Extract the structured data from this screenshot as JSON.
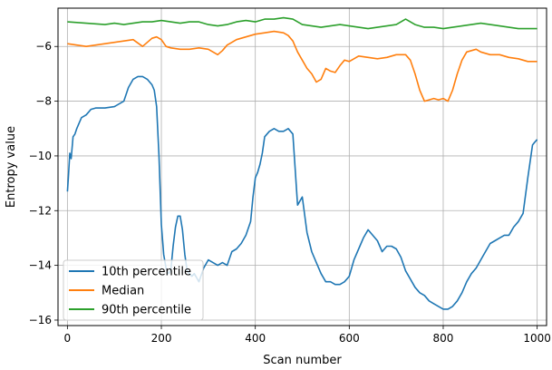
{
  "chart_data": {
    "type": "line",
    "title": "",
    "xlabel": "Scan number",
    "ylabel": "Entropy value",
    "xlim": [
      -20,
      1020
    ],
    "ylim": [
      -16.2,
      -4.6
    ],
    "xticks": [
      0,
      200,
      400,
      600,
      800,
      1000
    ],
    "yticks": [
      -16,
      -14,
      -12,
      -10,
      -8,
      -6
    ],
    "xtick_labels": [
      "0",
      "200",
      "400",
      "600",
      "800",
      "1000"
    ],
    "ytick_labels": [
      "−16",
      "−14",
      "−12",
      "−10",
      "−8",
      "−6"
    ],
    "grid": true,
    "legend_position": "lower-left",
    "series": [
      {
        "name": "10th percentile",
        "color": "#1f77b4",
        "x": [
          0,
          2,
          5,
          8,
          12,
          16,
          20,
          25,
          30,
          40,
          50,
          60,
          70,
          80,
          100,
          120,
          130,
          140,
          150,
          160,
          170,
          180,
          185,
          190,
          195,
          200,
          205,
          210,
          215,
          220,
          225,
          230,
          235,
          240,
          245,
          250,
          255,
          260,
          265,
          270,
          280,
          290,
          300,
          310,
          320,
          330,
          340,
          350,
          360,
          370,
          380,
          390,
          395,
          400,
          405,
          410,
          415,
          420,
          430,
          440,
          450,
          460,
          470,
          480,
          490,
          500,
          510,
          520,
          530,
          540,
          550,
          560,
          570,
          580,
          590,
          600,
          610,
          620,
          630,
          640,
          650,
          660,
          670,
          680,
          690,
          700,
          710,
          720,
          730,
          740,
          750,
          760,
          770,
          780,
          790,
          800,
          810,
          820,
          830,
          840,
          850,
          860,
          870,
          880,
          890,
          900,
          910,
          920,
          930,
          940,
          950,
          960,
          970,
          980,
          985,
          990,
          995,
          1000
        ],
        "y": [
          -11.3,
          -10.8,
          -9.9,
          -10.1,
          -9.3,
          -9.2,
          -9.0,
          -8.8,
          -8.6,
          -8.5,
          -8.3,
          -8.25,
          -8.25,
          -8.25,
          -8.2,
          -8.0,
          -7.5,
          -7.2,
          -7.1,
          -7.1,
          -7.2,
          -7.4,
          -7.6,
          -8.2,
          -10.0,
          -12.5,
          -13.6,
          -14.1,
          -14.3,
          -14.2,
          -13.3,
          -12.6,
          -12.2,
          -12.2,
          -12.7,
          -13.6,
          -14.2,
          -14.3,
          -14.4,
          -14.3,
          -14.6,
          -14.1,
          -13.8,
          -13.9,
          -14.0,
          -13.9,
          -14.0,
          -13.5,
          -13.4,
          -13.2,
          -12.9,
          -12.4,
          -11.5,
          -10.8,
          -10.6,
          -10.3,
          -9.9,
          -9.3,
          -9.1,
          -9.0,
          -9.1,
          -9.1,
          -9.0,
          -9.2,
          -11.8,
          -11.5,
          -12.8,
          -13.5,
          -13.9,
          -14.3,
          -14.6,
          -14.6,
          -14.7,
          -14.7,
          -14.6,
          -14.4,
          -13.8,
          -13.4,
          -13.0,
          -12.7,
          -12.9,
          -13.1,
          -13.5,
          -13.3,
          -13.3,
          -13.4,
          -13.7,
          -14.2,
          -14.5,
          -14.8,
          -15.0,
          -15.1,
          -15.3,
          -15.4,
          -15.5,
          -15.6,
          -15.6,
          -15.5,
          -15.3,
          -15.0,
          -14.6,
          -14.3,
          -14.1,
          -13.8,
          -13.5,
          -13.2,
          -13.1,
          -13.0,
          -12.9,
          -12.9,
          -12.6,
          -12.4,
          -12.1,
          -10.8,
          -10.2,
          -9.6,
          -9.5,
          -9.4
        ]
      },
      {
        "name": "Median",
        "color": "#ff7f0e",
        "x": [
          0,
          20,
          40,
          60,
          80,
          100,
          120,
          140,
          160,
          170,
          180,
          190,
          200,
          210,
          220,
          240,
          260,
          280,
          300,
          310,
          320,
          330,
          340,
          350,
          360,
          370,
          380,
          390,
          400,
          420,
          440,
          460,
          470,
          480,
          490,
          500,
          510,
          520,
          530,
          540,
          550,
          560,
          570,
          580,
          590,
          600,
          620,
          640,
          660,
          680,
          700,
          720,
          730,
          740,
          750,
          760,
          770,
          780,
          790,
          800,
          810,
          820,
          830,
          840,
          850,
          860,
          870,
          880,
          900,
          920,
          940,
          960,
          980,
          1000
        ],
        "y": [
          -5.9,
          -5.95,
          -6.0,
          -5.95,
          -5.9,
          -5.85,
          -5.8,
          -5.75,
          -6.0,
          -5.85,
          -5.7,
          -5.65,
          -5.75,
          -6.0,
          -6.05,
          -6.1,
          -6.1,
          -6.05,
          -6.1,
          -6.2,
          -6.3,
          -6.15,
          -5.95,
          -5.85,
          -5.75,
          -5.7,
          -5.65,
          -5.6,
          -5.55,
          -5.5,
          -5.45,
          -5.5,
          -5.6,
          -5.8,
          -6.2,
          -6.5,
          -6.8,
          -7.0,
          -7.3,
          -7.2,
          -6.8,
          -6.9,
          -6.95,
          -6.7,
          -6.5,
          -6.55,
          -6.35,
          -6.4,
          -6.45,
          -6.4,
          -6.3,
          -6.3,
          -6.5,
          -7.0,
          -7.6,
          -8.0,
          -7.95,
          -7.9,
          -7.95,
          -7.9,
          -8.0,
          -7.6,
          -7.0,
          -6.5,
          -6.2,
          -6.15,
          -6.1,
          -6.2,
          -6.3,
          -6.3,
          -6.4,
          -6.45,
          -6.55,
          -6.55
        ]
      },
      {
        "name": "90th percentile",
        "color": "#2ca02c",
        "x": [
          0,
          40,
          80,
          100,
          120,
          140,
          160,
          180,
          200,
          220,
          240,
          260,
          280,
          300,
          320,
          340,
          360,
          380,
          400,
          420,
          440,
          460,
          480,
          500,
          520,
          540,
          560,
          580,
          600,
          620,
          640,
          660,
          680,
          700,
          720,
          740,
          760,
          780,
          800,
          820,
          840,
          860,
          880,
          900,
          920,
          940,
          960,
          980,
          1000
        ],
        "y": [
          -5.1,
          -5.15,
          -5.2,
          -5.15,
          -5.2,
          -5.15,
          -5.1,
          -5.1,
          -5.05,
          -5.1,
          -5.15,
          -5.1,
          -5.1,
          -5.2,
          -5.25,
          -5.2,
          -5.1,
          -5.05,
          -5.1,
          -5.0,
          -5.0,
          -4.95,
          -5.0,
          -5.2,
          -5.25,
          -5.3,
          -5.25,
          -5.2,
          -5.25,
          -5.3,
          -5.35,
          -5.3,
          -5.25,
          -5.2,
          -5.0,
          -5.2,
          -5.3,
          -5.3,
          -5.35,
          -5.3,
          -5.25,
          -5.2,
          -5.15,
          -5.2,
          -5.25,
          -5.3,
          -5.35,
          -5.35,
          -5.35
        ]
      }
    ]
  }
}
